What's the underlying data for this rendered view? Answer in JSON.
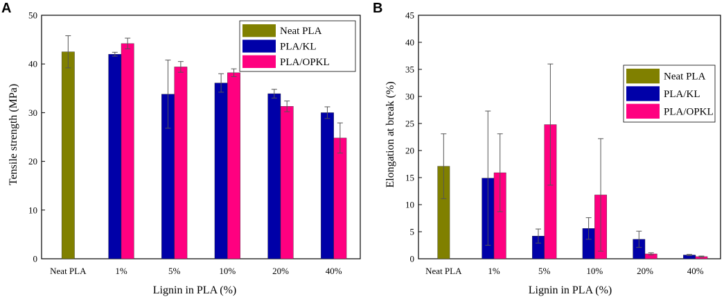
{
  "colors": {
    "neat": "#808000",
    "kl": "#0000A8",
    "opkl": "#FF0080",
    "axis": "#000000",
    "errorbar": "#555555"
  },
  "chart_data": [
    {
      "type": "bar",
      "panel": "A",
      "xlabel": "Lignin in PLA (%)",
      "ylabel": "Tensile strength (MPa)",
      "ylim": [
        0,
        50
      ],
      "yticks": [
        0,
        10,
        20,
        30,
        40,
        50
      ],
      "categories": [
        "Neat PLA",
        "1%",
        "5%",
        "10%",
        "20%",
        "40%"
      ],
      "legend_position": "top-right",
      "series": [
        {
          "name": "Neat PLA",
          "color_key": "neat",
          "values": [
            42.5,
            null,
            null,
            null,
            null,
            null
          ],
          "errors": [
            3.3,
            null,
            null,
            null,
            null,
            null
          ]
        },
        {
          "name": "PLA/KL",
          "color_key": "kl",
          "values": [
            null,
            42.0,
            33.8,
            36.1,
            33.9,
            30.0
          ],
          "errors": [
            null,
            0.4,
            7.0,
            1.9,
            0.9,
            1.2
          ]
        },
        {
          "name": "PLA/OPKL",
          "color_key": "opkl",
          "values": [
            null,
            44.2,
            39.4,
            38.2,
            31.3,
            24.8
          ],
          "errors": [
            null,
            1.1,
            1.1,
            0.8,
            1.1,
            3.1
          ]
        }
      ]
    },
    {
      "type": "bar",
      "panel": "B",
      "xlabel": "Lignin in PLA (%)",
      "ylabel": "Elongation at break (%)",
      "ylim": [
        0,
        45
      ],
      "yticks": [
        0,
        5,
        10,
        15,
        20,
        25,
        30,
        35,
        40,
        45
      ],
      "categories": [
        "Neat PLA",
        "1%",
        "5%",
        "10%",
        "20%",
        "40%"
      ],
      "legend_position": "top-right",
      "series": [
        {
          "name": "Neat PLA",
          "color_key": "neat",
          "values": [
            17.1,
            null,
            null,
            null,
            null,
            null
          ],
          "errors": [
            6.0,
            null,
            null,
            null,
            null,
            null
          ]
        },
        {
          "name": "PLA/KL",
          "color_key": "kl",
          "values": [
            null,
            14.9,
            4.2,
            5.6,
            3.6,
            0.7
          ],
          "errors": [
            null,
            12.4,
            1.3,
            2.0,
            1.5,
            0.1
          ]
        },
        {
          "name": "PLA/OPKL",
          "color_key": "opkl",
          "values": [
            null,
            15.9,
            24.8,
            11.8,
            0.9,
            0.4
          ],
          "errors": [
            null,
            7.2,
            11.2,
            10.4,
            0.2,
            0.1
          ]
        }
      ]
    }
  ]
}
